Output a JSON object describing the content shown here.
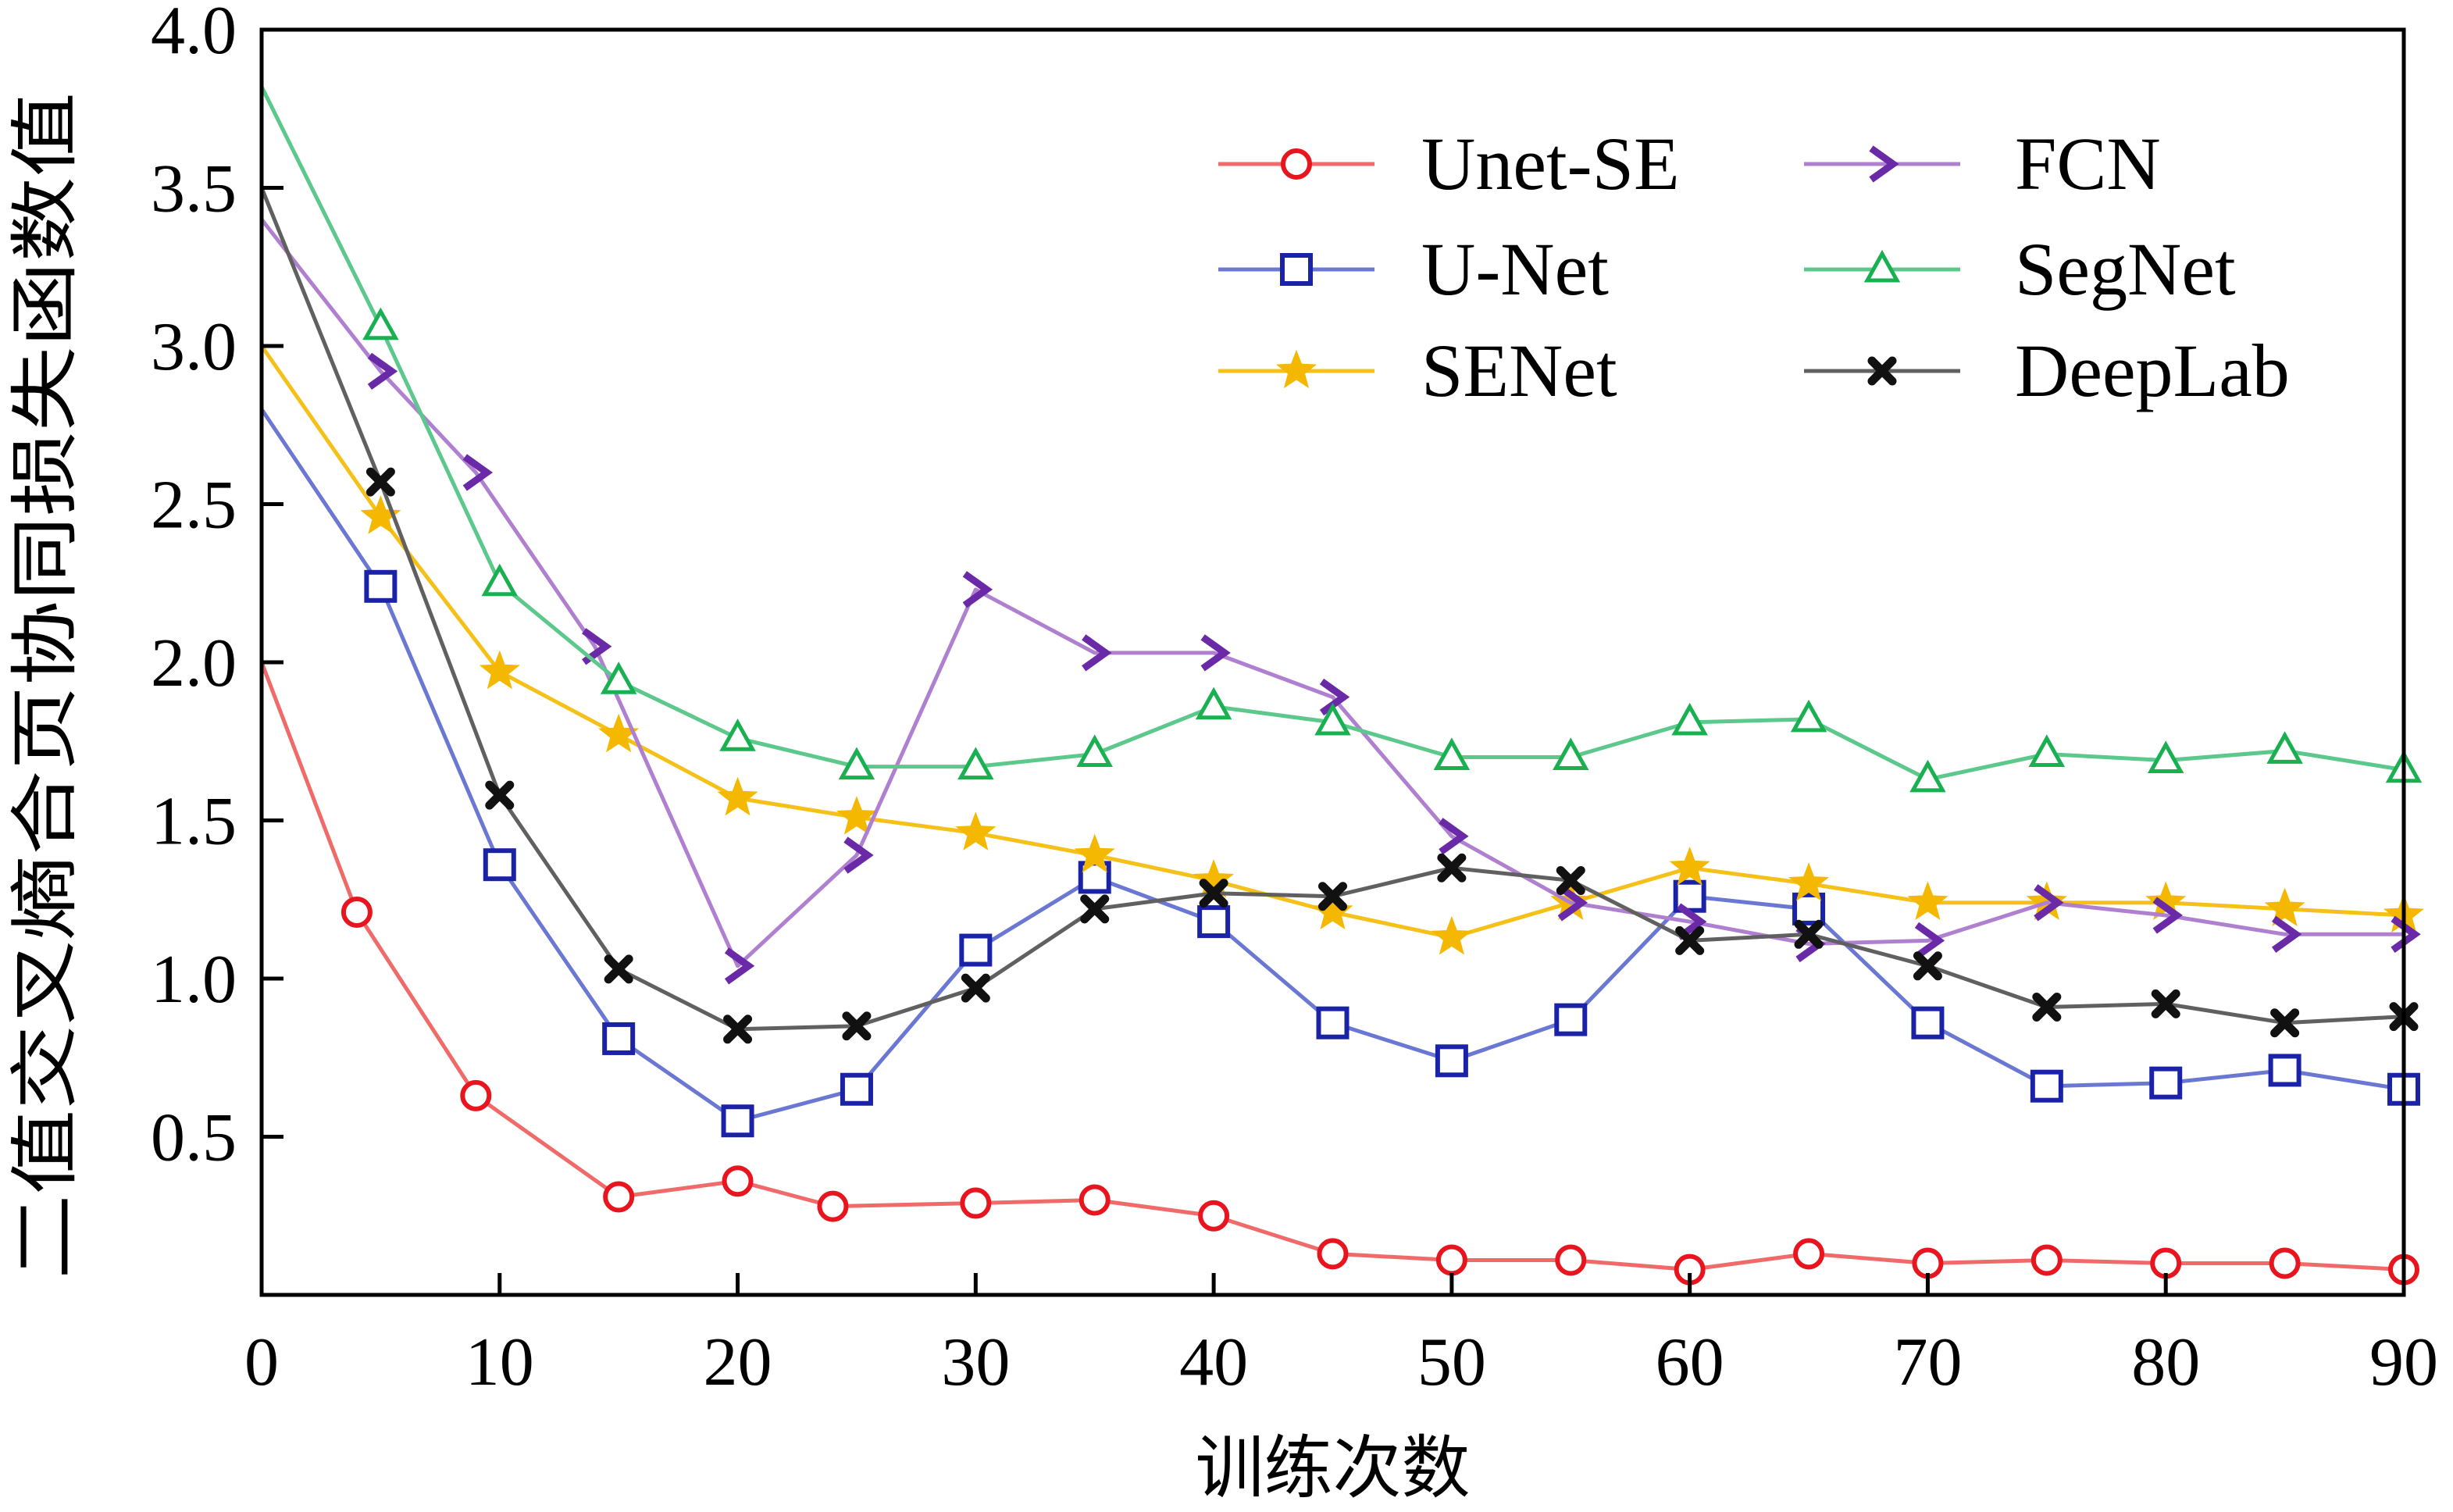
{
  "chart_data": {
    "type": "line",
    "title": "",
    "xlabel": "训练次数",
    "ylabel": "二值交叉熵合页协同损失函数值",
    "xlim": [
      0,
      90
    ],
    "ylim": [
      0,
      4.0
    ],
    "x_ticks": [
      0,
      10,
      20,
      30,
      40,
      50,
      60,
      70,
      80,
      90
    ],
    "y_ticks": [
      0.5,
      1.0,
      1.5,
      2.0,
      2.5,
      3.0,
      3.5,
      4.0
    ],
    "x_tick_labels": [
      "0",
      "10",
      "20",
      "30",
      "40",
      "50",
      "60",
      "70",
      "80",
      "90"
    ],
    "y_tick_labels": [
      "0.5",
      "1.0",
      "1.5",
      "2.0",
      "2.5",
      "3.0",
      "3.5",
      "4.0"
    ],
    "grid": false,
    "legend_position": "top-right",
    "series": [
      {
        "name": "Unet-SE",
        "color": "#f06a6a",
        "marker": "circle",
        "marker_color": "#e8141e",
        "x": [
          0,
          4,
          9,
          15,
          20,
          24,
          30,
          35,
          40,
          45,
          50,
          55,
          60,
          65,
          70,
          75,
          80,
          85,
          90
        ],
        "y": [
          2.0,
          1.21,
          0.63,
          0.31,
          0.36,
          0.28,
          0.29,
          0.3,
          0.25,
          0.13,
          0.11,
          0.11,
          0.08,
          0.13,
          0.1,
          0.11,
          0.1,
          0.1,
          0.08
        ]
      },
      {
        "name": "U-Net",
        "color": "#6a78d4",
        "marker": "square",
        "marker_color": "#1a22a8",
        "x": [
          0,
          5,
          10,
          15,
          20,
          25,
          30,
          35,
          40,
          45,
          50,
          55,
          60,
          65,
          70,
          75,
          80,
          85,
          90
        ],
        "y": [
          2.8,
          2.24,
          1.36,
          0.81,
          0.55,
          0.65,
          1.09,
          1.32,
          1.18,
          0.86,
          0.74,
          0.87,
          1.26,
          1.22,
          0.86,
          0.66,
          0.67,
          0.71,
          0.65
        ]
      },
      {
        "name": "SENet",
        "color": "#f5c018",
        "marker": "star",
        "marker_color": "#f5b800",
        "x": [
          0,
          5,
          10,
          15,
          20,
          25,
          30,
          35,
          40,
          45,
          50,
          55,
          60,
          65,
          70,
          75,
          80,
          85,
          90
        ],
        "y": [
          3.0,
          2.46,
          1.97,
          1.77,
          1.57,
          1.51,
          1.46,
          1.39,
          1.31,
          1.21,
          1.13,
          1.24,
          1.35,
          1.3,
          1.24,
          1.24,
          1.24,
          1.22,
          1.2
        ]
      },
      {
        "name": "FCN",
        "color": "#b080d0",
        "marker": "chevron",
        "marker_color": "#6a2aa8",
        "x": [
          0,
          5,
          9,
          14,
          20,
          25,
          30,
          35,
          40,
          45,
          50,
          55,
          60,
          65,
          70,
          75,
          80,
          85,
          90
        ],
        "y": [
          3.4,
          2.92,
          2.6,
          2.05,
          1.04,
          1.39,
          2.23,
          2.03,
          2.03,
          1.89,
          1.45,
          1.24,
          1.18,
          1.11,
          1.12,
          1.24,
          1.2,
          1.14,
          1.14
        ]
      },
      {
        "name": "SegNet",
        "color": "#5cc88c",
        "marker": "triangle",
        "marker_color": "#18b050",
        "x": [
          0,
          5,
          10,
          15,
          20,
          25,
          30,
          35,
          40,
          45,
          50,
          55,
          60,
          65,
          70,
          75,
          80,
          85,
          90
        ],
        "y": [
          3.82,
          3.06,
          2.25,
          1.94,
          1.76,
          1.67,
          1.67,
          1.71,
          1.86,
          1.81,
          1.7,
          1.7,
          1.81,
          1.82,
          1.63,
          1.71,
          1.69,
          1.72,
          1.66
        ]
      },
      {
        "name": "DeepLab",
        "color": "#606060",
        "marker": "x",
        "marker_color": "#111111",
        "x": [
          0,
          5,
          10,
          15,
          20,
          25,
          30,
          35,
          40,
          45,
          50,
          55,
          60,
          65,
          70,
          75,
          80,
          85,
          90
        ],
        "y": [
          3.5,
          2.57,
          1.58,
          1.03,
          0.84,
          0.85,
          0.97,
          1.22,
          1.27,
          1.26,
          1.35,
          1.31,
          1.12,
          1.14,
          1.04,
          0.91,
          0.92,
          0.86,
          0.88
        ]
      }
    ]
  }
}
